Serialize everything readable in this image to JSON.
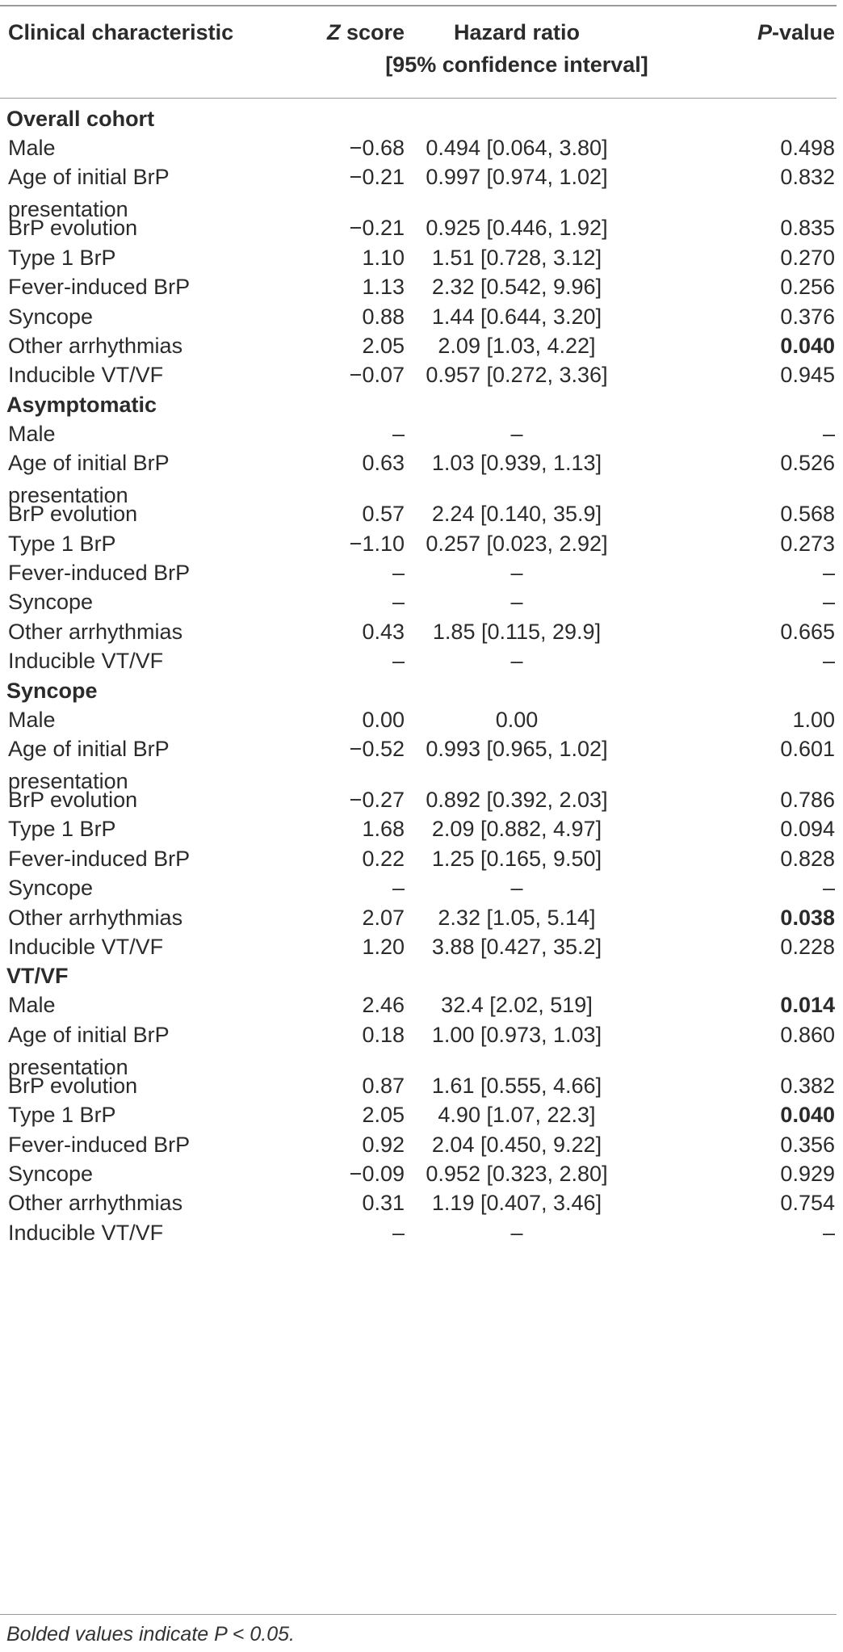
{
  "header": {
    "col1": "Clinical characteristic",
    "col2_italic": "Z",
    "col2_rest": " score",
    "col3_line1": "Hazard ratio",
    "col3_line2": "[95% confidence interval]",
    "col4_italic": "P",
    "col4_rest": "-value"
  },
  "sections": [
    {
      "title": "Overall cohort",
      "rows": [
        {
          "name": "Male",
          "z": "−0.68",
          "hr": "0.494 [0.064, 3.80]",
          "p": "0.498",
          "bold": false
        },
        {
          "name": "Age of initial BrP presentation",
          "z": "−0.21",
          "hr": "0.997 [0.974, 1.02]",
          "p": "0.832",
          "bold": false
        },
        {
          "name": "BrP evolution",
          "z": "−0.21",
          "hr": "0.925 [0.446, 1.92]",
          "p": "0.835",
          "bold": false
        },
        {
          "name": "Type 1 BrP",
          "z": "1.10",
          "hr": "1.51 [0.728, 3.12]",
          "p": "0.270",
          "bold": false
        },
        {
          "name": "Fever-induced BrP",
          "z": "1.13",
          "hr": "2.32 [0.542, 9.96]",
          "p": "0.256",
          "bold": false
        },
        {
          "name": "Syncope",
          "z": "0.88",
          "hr": "1.44 [0.644, 3.20]",
          "p": "0.376",
          "bold": false
        },
        {
          "name": "Other arrhythmias",
          "z": "2.05",
          "hr": "2.09 [1.03, 4.22]",
          "p": "0.040",
          "bold": true
        },
        {
          "name": "Inducible VT/VF",
          "z": "−0.07",
          "hr": "0.957 [0.272, 3.36]",
          "p": "0.945",
          "bold": false
        }
      ]
    },
    {
      "title": "Asymptomatic",
      "rows": [
        {
          "name": "Male",
          "z": "–",
          "hr": "–",
          "p": "–",
          "bold": false
        },
        {
          "name": "Age of initial BrP presentation",
          "z": "0.63",
          "hr": "1.03 [0.939, 1.13]",
          "p": "0.526",
          "bold": false
        },
        {
          "name": "BrP evolution",
          "z": "0.57",
          "hr": "2.24 [0.140, 35.9]",
          "p": "0.568",
          "bold": false
        },
        {
          "name": "Type 1 BrP",
          "z": "−1.10",
          "hr": "0.257 [0.023, 2.92]",
          "p": "0.273",
          "bold": false
        },
        {
          "name": "Fever-induced BrP",
          "z": "–",
          "hr": "–",
          "p": "–",
          "bold": false
        },
        {
          "name": "Syncope",
          "z": "–",
          "hr": "–",
          "p": "–",
          "bold": false
        },
        {
          "name": "Other arrhythmias",
          "z": "0.43",
          "hr": "1.85 [0.115, 29.9]",
          "p": "0.665",
          "bold": false
        },
        {
          "name": "Inducible VT/VF",
          "z": "–",
          "hr": "–",
          "p": "–",
          "bold": false
        }
      ]
    },
    {
      "title": "Syncope",
      "rows": [
        {
          "name": "Male",
          "z": "0.00",
          "hr": "0.00",
          "p": "1.00",
          "bold": false
        },
        {
          "name": "Age of initial BrP presentation",
          "z": "−0.52",
          "hr": "0.993 [0.965, 1.02]",
          "p": "0.601",
          "bold": false
        },
        {
          "name": "BrP evolution",
          "z": "−0.27",
          "hr": "0.892 [0.392, 2.03]",
          "p": "0.786",
          "bold": false
        },
        {
          "name": "Type 1 BrP",
          "z": "1.68",
          "hr": "2.09 [0.882, 4.97]",
          "p": "0.094",
          "bold": false
        },
        {
          "name": "Fever-induced BrP",
          "z": "0.22",
          "hr": "1.25 [0.165, 9.50]",
          "p": "0.828",
          "bold": false
        },
        {
          "name": "Syncope",
          "z": "–",
          "hr": "–",
          "p": "–",
          "bold": false
        },
        {
          "name": "Other arrhythmias",
          "z": "2.07",
          "hr": "2.32 [1.05, 5.14]",
          "p": "0.038",
          "bold": true
        },
        {
          "name": "Inducible VT/VF",
          "z": "1.20",
          "hr": "3.88 [0.427, 35.2]",
          "p": "0.228",
          "bold": false
        }
      ]
    },
    {
      "title": "VT/VF",
      "rows": [
        {
          "name": "Male",
          "z": "2.46",
          "hr": "32.4 [2.02, 519]",
          "p": "0.014",
          "bold": true
        },
        {
          "name": "Age of initial BrP presentation",
          "z": "0.18",
          "hr": "1.00 [0.973, 1.03]",
          "p": "0.860",
          "bold": false
        },
        {
          "name": "BrP evolution",
          "z": "0.87",
          "hr": "1.61 [0.555, 4.66]",
          "p": "0.382",
          "bold": false
        },
        {
          "name": "Type 1 BrP",
          "z": "2.05",
          "hr": "4.90 [1.07, 22.3]",
          "p": "0.040",
          "bold": true
        },
        {
          "name": "Fever-induced BrP",
          "z": "0.92",
          "hr": "2.04 [0.450, 9.22]",
          "p": "0.356",
          "bold": false
        },
        {
          "name": "Syncope",
          "z": "−0.09",
          "hr": "0.952 [0.323, 2.80]",
          "p": "0.929",
          "bold": false
        },
        {
          "name": "Other arrhythmias",
          "z": "0.31",
          "hr": "1.19 [0.407, 3.46]",
          "p": "0.754",
          "bold": false
        },
        {
          "name": "Inducible VT/VF",
          "z": "–",
          "hr": "–",
          "p": "–",
          "bold": false
        }
      ]
    }
  ],
  "footnote": "Bolded values indicate P < 0.05."
}
